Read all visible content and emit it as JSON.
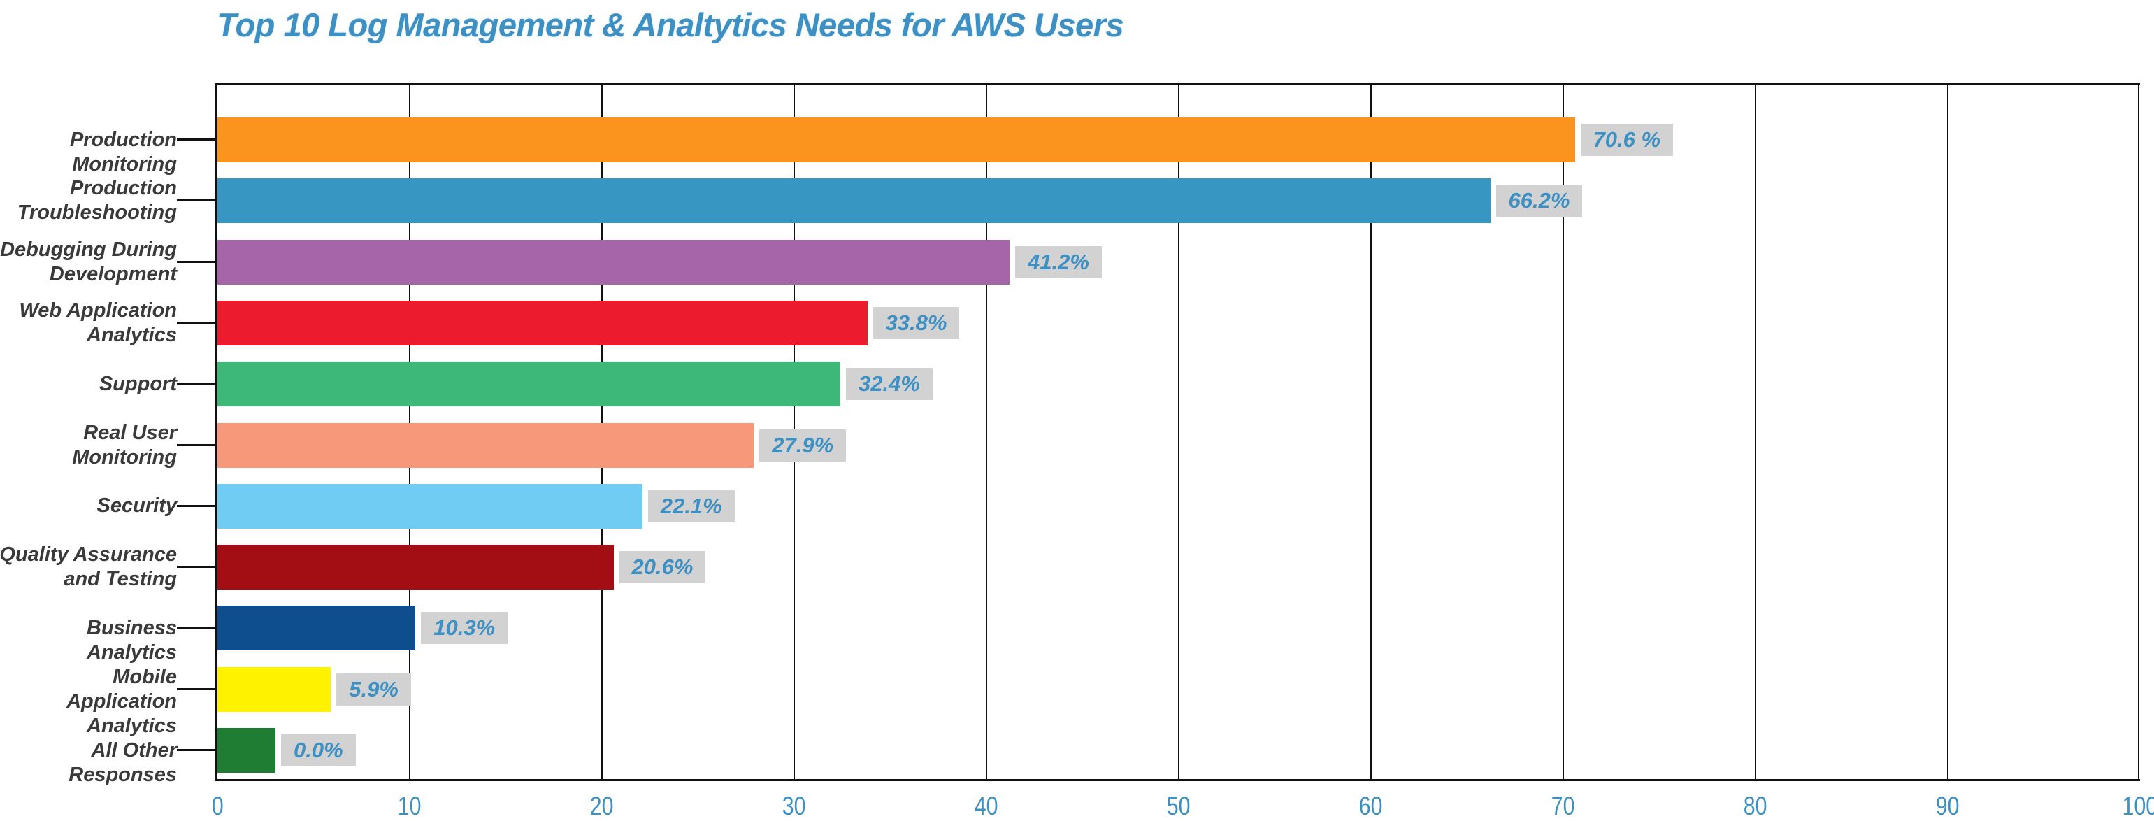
{
  "title": {
    "text": "Top 10 Log Management & Analtytics Needs for AWS Users",
    "color": "#3d90c3"
  },
  "axis": {
    "line_color": "#111111",
    "tick_label_color": "#3d90c3"
  },
  "value_label_style": {
    "background": "#d2d2d2",
    "text_color": "#3d90c3"
  },
  "category_label_color": "#3a3a3a",
  "chart_data": {
    "type": "bar",
    "orientation": "horizontal",
    "title": "Top 10 Log Management & Analtytics Needs for AWS Users",
    "xlabel": "",
    "ylabel": "",
    "xlim": [
      0,
      100
    ],
    "x_ticks": [
      0,
      10,
      20,
      30,
      40,
      50,
      60,
      70,
      80,
      90,
      100
    ],
    "x_tick_labels": [
      "0",
      "10",
      "20",
      "30",
      "40",
      "50",
      "60",
      "70",
      "80",
      "90",
      "100"
    ],
    "grid": "vertical",
    "legend": "none",
    "categories": [
      "Production Monitoring",
      "Production Troubleshooting",
      "Debugging During Development",
      "Web Application Analytics",
      "Support",
      "Real User Monitoring",
      "Security",
      "Quality Assurance and Testing",
      "Business Analytics",
      "Mobile Application Analytics",
      "All Other Responses"
    ],
    "category_lines": [
      [
        "Production Monitoring"
      ],
      [
        "Production",
        "Troubleshooting"
      ],
      [
        "Debugging During",
        "Development"
      ],
      [
        "Web Application",
        "Analytics"
      ],
      [
        "Support"
      ],
      [
        "Real User",
        "Monitoring"
      ],
      [
        "Security"
      ],
      [
        "Quality Assurance",
        "and Testing"
      ],
      [
        "Business Analytics"
      ],
      [
        "Mobile Application",
        "Analytics"
      ],
      [
        "All Other Responses"
      ]
    ],
    "values": [
      70.6,
      66.2,
      41.2,
      33.8,
      32.4,
      27.9,
      22.1,
      20.6,
      10.3,
      5.9,
      0.0
    ],
    "value_labels": [
      "70.6 %",
      "66.2%",
      "41.2%",
      "33.8%",
      "32.4%",
      "27.9%",
      "22.1%",
      "20.6%",
      "10.3%",
      "5.9%",
      "0.0%"
    ],
    "bar_colors": [
      "#fb941e",
      "#3896c2",
      "#a565a8",
      "#ec1b2d",
      "#3db878",
      "#f69879",
      "#70ccf2",
      "#a30e15",
      "#0e4e8e",
      "#fef200",
      "#1e7c33"
    ]
  }
}
